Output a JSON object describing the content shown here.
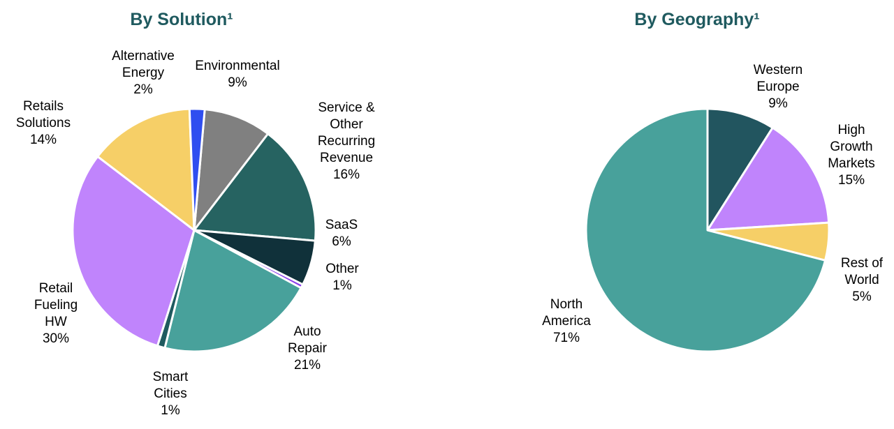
{
  "chart_data": [
    {
      "type": "pie",
      "title": "By Solution¹",
      "slices": [
        {
          "label": [
            "Environmental"
          ],
          "value": 9,
          "value_label": "9%",
          "color": "#808080"
        },
        {
          "label": [
            "Service &",
            "Other",
            "Recurring",
            "Revenue"
          ],
          "value": 16,
          "value_label": "16%",
          "color": "#266361"
        },
        {
          "label": [
            "SaaS"
          ],
          "value": 6,
          "value_label": "6%",
          "color": "#10313a"
        },
        {
          "label": [
            "Other"
          ],
          "value": 0.5,
          "value_label": "1%",
          "color": "#8b3dea"
        },
        {
          "label": [
            "Auto",
            "Repair"
          ],
          "value": 21,
          "value_label": "21%",
          "color": "#48a19b"
        },
        {
          "label": [
            "Smart",
            "Cities"
          ],
          "value": 1,
          "value_label": "1%",
          "color": "#1f5a5f"
        },
        {
          "label": [
            "Retail",
            "Fueling",
            "HW"
          ],
          "value": 30.5,
          "value_label": "30%",
          "color": "#c084fc"
        },
        {
          "label": [
            "Retails",
            "Solutions"
          ],
          "value": 14,
          "value_label": "14%",
          "color": "#f6cf67"
        },
        {
          "label": [
            "Alternative",
            "Energy"
          ],
          "value": 2,
          "value_label": "2%",
          "color": "#2f4ef0"
        }
      ]
    },
    {
      "type": "pie",
      "title": "By Geography¹",
      "slices": [
        {
          "label": [
            "Western",
            "Europe"
          ],
          "value": 9,
          "value_label": "9%",
          "color": "#22555f"
        },
        {
          "label": [
            "High",
            "Growth",
            "Markets"
          ],
          "value": 15,
          "value_label": "15%",
          "color": "#c084fc"
        },
        {
          "label": [
            "Rest of",
            "World"
          ],
          "value": 5,
          "value_label": "5%",
          "color": "#f6cf67"
        },
        {
          "label": [
            "North",
            "America"
          ],
          "value": 71,
          "value_label": "71%",
          "color": "#48a19b"
        }
      ]
    }
  ]
}
